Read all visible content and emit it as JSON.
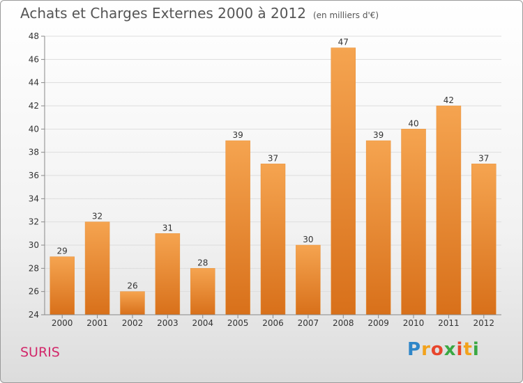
{
  "header": {
    "title": "Achats et Charges Externes 2000 à 2012",
    "unit": "(en milliers d'€)"
  },
  "footer": {
    "city": "SURIS",
    "logo_letters": [
      "P",
      "r",
      "o",
      "x",
      "i",
      "t",
      "i"
    ],
    "logo_colors": [
      "#2e86c8",
      "#f2a21c",
      "#e8452c",
      "#3aa843",
      "#e8452c",
      "#f2a21c",
      "#3aa843"
    ]
  },
  "colors": {
    "bar_top": "#f5a450",
    "bar_bottom": "#d8701a",
    "grid": "#dddddd",
    "axis_text": "#333333",
    "title": "#555555",
    "city": "#d2286a"
  },
  "chart_data": {
    "type": "bar",
    "title": "Achats et Charges Externes 2000 à 2012",
    "xlabel": "",
    "ylabel": "",
    "categories": [
      "2000",
      "2001",
      "2002",
      "2003",
      "2004",
      "2005",
      "2006",
      "2007",
      "2008",
      "2009",
      "2010",
      "2011",
      "2012"
    ],
    "values": [
      29,
      32,
      26,
      31,
      28,
      39,
      37,
      30,
      47,
      39,
      40,
      42,
      37
    ],
    "ylim": [
      24,
      48
    ],
    "yticks": [
      24,
      26,
      28,
      30,
      32,
      34,
      36,
      38,
      40,
      42,
      44,
      46,
      48
    ],
    "grid": true
  }
}
